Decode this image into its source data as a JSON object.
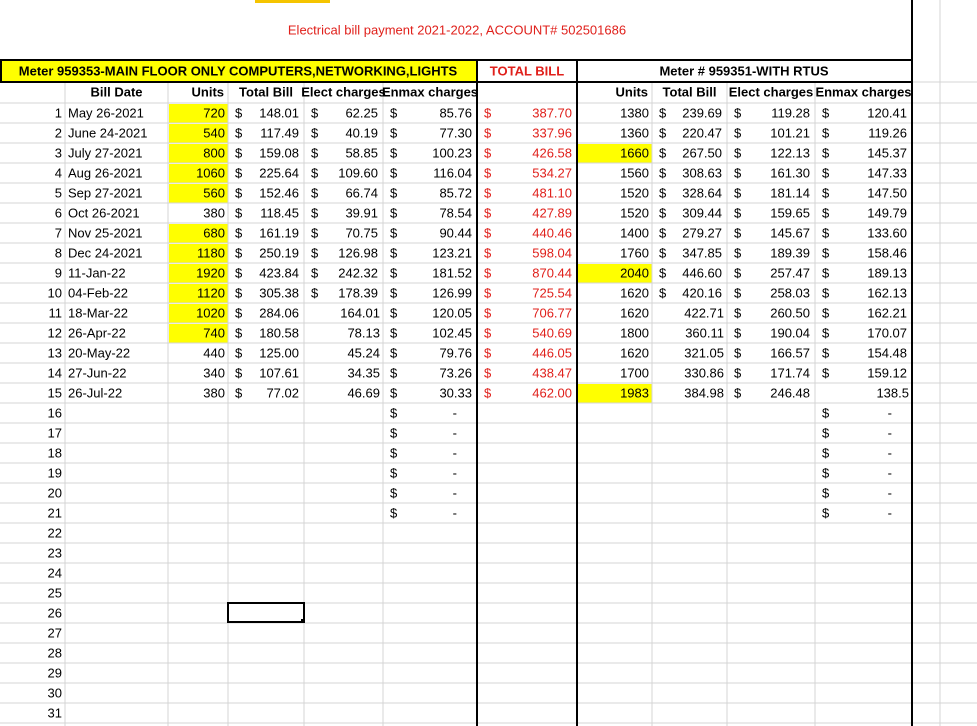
{
  "sheet": {
    "title": "Electrical bill payment 2021-2022, ACCOUNT# 502501686",
    "group_headers": [
      "Meter 959353-MAIN FLOOR ONLY COMPUTERS,NETWORKING,LIGHTS",
      "TOTAL BILL",
      "Meter # 959351-WITH RTUS"
    ],
    "column_headers": [
      "Bill Date",
      "Units",
      "Total Bill",
      "Elect charges",
      "Enmax charges",
      null,
      "Units",
      "Total Bill",
      "Elect charges",
      "Enmax charges"
    ],
    "highlight_color": "#ffff00",
    "rows": [
      {
        "n": 1,
        "cells": [
          "May 26-2021",
          "720",
          [
            "$",
            "148.01"
          ],
          [
            "$",
            "62.25"
          ],
          [
            "$",
            "85.76"
          ],
          [
            "$",
            "387.70"
          ],
          "1380",
          [
            "$",
            "239.69"
          ],
          [
            "$",
            "119.28"
          ],
          [
            "$",
            "120.41"
          ]
        ],
        "highlight": [
          1
        ]
      },
      {
        "n": 2,
        "cells": [
          "June 24-2021",
          "540",
          [
            "$",
            "117.49"
          ],
          [
            "$",
            "40.19"
          ],
          [
            "$",
            "77.30"
          ],
          [
            "$",
            "337.96"
          ],
          "1360",
          [
            "$",
            "220.47"
          ],
          [
            "$",
            "101.21"
          ],
          [
            "$",
            "119.26"
          ]
        ],
        "highlight": [
          1
        ]
      },
      {
        "n": 3,
        "cells": [
          "July 27-2021",
          "800",
          [
            "$",
            "159.08"
          ],
          [
            "$",
            "58.85"
          ],
          [
            "$",
            "100.23"
          ],
          [
            "$",
            "426.58"
          ],
          "1660",
          [
            "$",
            "267.50"
          ],
          [
            "$",
            "122.13"
          ],
          [
            "$",
            "145.37"
          ]
        ],
        "highlight": [
          1,
          6
        ]
      },
      {
        "n": 4,
        "cells": [
          "Aug 26-2021",
          "1060",
          [
            "$",
            "225.64"
          ],
          [
            "$",
            "109.60"
          ],
          [
            "$",
            "116.04"
          ],
          [
            "$",
            "534.27"
          ],
          "1560",
          [
            "$",
            "308.63"
          ],
          [
            "$",
            "161.30"
          ],
          [
            "$",
            "147.33"
          ]
        ],
        "highlight": [
          1
        ]
      },
      {
        "n": 5,
        "cells": [
          "Sep 27-2021",
          "560",
          [
            "$",
            "152.46"
          ],
          [
            "$",
            "66.74"
          ],
          [
            "$",
            "85.72"
          ],
          [
            "$",
            "481.10"
          ],
          "1520",
          [
            "$",
            "328.64"
          ],
          [
            "$",
            "181.14"
          ],
          [
            "$",
            "147.50"
          ]
        ],
        "highlight": [
          1
        ]
      },
      {
        "n": 6,
        "cells": [
          "Oct 26-2021",
          "380",
          [
            "$",
            "118.45"
          ],
          [
            "$",
            "39.91"
          ],
          [
            "$",
            "78.54"
          ],
          [
            "$",
            "427.89"
          ],
          "1520",
          [
            "$",
            "309.44"
          ],
          [
            "$",
            "159.65"
          ],
          [
            "$",
            "149.79"
          ]
        ],
        "highlight": []
      },
      {
        "n": 7,
        "cells": [
          "Nov 25-2021",
          "680",
          [
            "$",
            "161.19"
          ],
          [
            "$",
            "70.75"
          ],
          [
            "$",
            "90.44"
          ],
          [
            "$",
            "440.46"
          ],
          "1400",
          [
            "$",
            "279.27"
          ],
          [
            "$",
            "145.67"
          ],
          [
            "$",
            "133.60"
          ]
        ],
        "highlight": [
          1
        ]
      },
      {
        "n": 8,
        "cells": [
          "Dec 24-2021",
          "1180",
          [
            "$",
            "250.19"
          ],
          [
            "$",
            "126.98"
          ],
          [
            "$",
            "123.21"
          ],
          [
            "$",
            "598.04"
          ],
          "1760",
          [
            "$",
            "347.85"
          ],
          [
            "$",
            "189.39"
          ],
          [
            "$",
            "158.46"
          ]
        ],
        "highlight": [
          1
        ]
      },
      {
        "n": 9,
        "cells": [
          "11-Jan-22",
          "1920",
          [
            "$",
            "423.84"
          ],
          [
            "$",
            "242.32"
          ],
          [
            "$",
            "181.52"
          ],
          [
            "$",
            "870.44"
          ],
          "2040",
          [
            "$",
            "446.60"
          ],
          [
            "$",
            "257.47"
          ],
          [
            "$",
            "189.13"
          ]
        ],
        "highlight": [
          1,
          6
        ]
      },
      {
        "n": 10,
        "cells": [
          "04-Feb-22",
          "1120",
          [
            "$",
            "305.38"
          ],
          [
            "$",
            "178.39"
          ],
          [
            "$",
            "126.99"
          ],
          [
            "$",
            "725.54"
          ],
          "1620",
          [
            "$",
            "420.16"
          ],
          [
            "$",
            "258.03"
          ],
          [
            "$",
            "162.13"
          ]
        ],
        "highlight": [
          1
        ]
      },
      {
        "n": 11,
        "cells": [
          "18-Mar-22",
          "1020",
          [
            "$",
            "284.06"
          ],
          "164.01",
          [
            "$",
            "120.05"
          ],
          [
            "$",
            "706.77"
          ],
          "1620",
          "422.71",
          [
            "$",
            "260.50"
          ],
          [
            "$",
            "162.21"
          ]
        ],
        "highlight": [
          1
        ]
      },
      {
        "n": 12,
        "cells": [
          "26-Apr-22",
          "740",
          [
            "$",
            "180.58"
          ],
          "78.13",
          [
            "$",
            "102.45"
          ],
          [
            "$",
            "540.69"
          ],
          "1800",
          "360.11",
          [
            "$",
            "190.04"
          ],
          [
            "$",
            "170.07"
          ]
        ],
        "highlight": [
          1
        ]
      },
      {
        "n": 13,
        "cells": [
          "20-May-22",
          "440",
          [
            "$",
            "125.00"
          ],
          "45.24",
          [
            "$",
            "79.76"
          ],
          [
            "$",
            "446.05"
          ],
          "1620",
          "321.05",
          [
            "$",
            "166.57"
          ],
          [
            "$",
            "154.48"
          ]
        ],
        "highlight": []
      },
      {
        "n": 14,
        "cells": [
          "27-Jun-22",
          "340",
          [
            "$",
            "107.61"
          ],
          "34.35",
          [
            "$",
            "73.26"
          ],
          [
            "$",
            "438.47"
          ],
          "1700",
          "330.86",
          [
            "$",
            "171.74"
          ],
          [
            "$",
            "159.12"
          ]
        ],
        "highlight": []
      },
      {
        "n": 15,
        "cells": [
          "26-Jul-22",
          "380",
          [
            "$",
            "77.02"
          ],
          "46.69",
          [
            "$",
            "30.33"
          ],
          [
            "$",
            "462.00"
          ],
          "1983",
          "384.98",
          [
            "$",
            "246.48"
          ],
          "138.5"
        ],
        "highlight": [
          6
        ]
      },
      {
        "n": 16,
        "cells": [
          null,
          null,
          null,
          null,
          [
            "$",
            "-"
          ],
          null,
          null,
          null,
          null,
          [
            "$",
            "-"
          ]
        ]
      },
      {
        "n": 17,
        "cells": [
          null,
          null,
          null,
          null,
          [
            "$",
            "-"
          ],
          null,
          null,
          null,
          null,
          [
            "$",
            "-"
          ]
        ]
      },
      {
        "n": 18,
        "cells": [
          null,
          null,
          null,
          null,
          [
            "$",
            "-"
          ],
          null,
          null,
          null,
          null,
          [
            "$",
            "-"
          ]
        ]
      },
      {
        "n": 19,
        "cells": [
          null,
          null,
          null,
          null,
          [
            "$",
            "-"
          ],
          null,
          null,
          null,
          null,
          [
            "$",
            "-"
          ]
        ]
      },
      {
        "n": 20,
        "cells": [
          null,
          null,
          null,
          null,
          [
            "$",
            "-"
          ],
          null,
          null,
          null,
          null,
          [
            "$",
            "-"
          ]
        ]
      },
      {
        "n": 21,
        "cells": [
          null,
          null,
          null,
          null,
          [
            "$",
            "-"
          ],
          null,
          null,
          null,
          null,
          [
            "$",
            "-"
          ]
        ]
      },
      {
        "n": 22
      },
      {
        "n": 23
      },
      {
        "n": 24
      },
      {
        "n": 25
      },
      {
        "n": 26
      },
      {
        "n": 27
      },
      {
        "n": 28
      },
      {
        "n": 29
      },
      {
        "n": 30
      },
      {
        "n": 31
      }
    ]
  }
}
